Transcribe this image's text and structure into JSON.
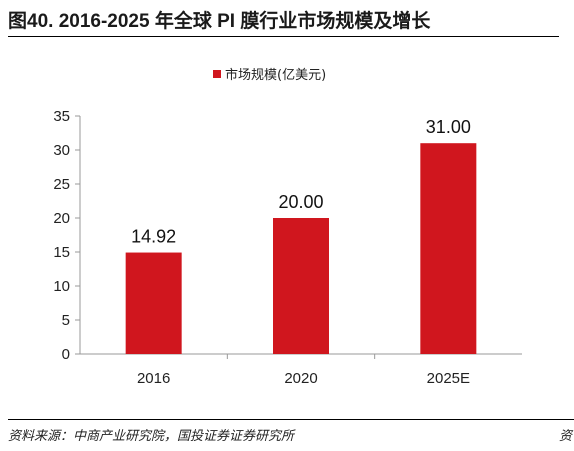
{
  "figure": {
    "title": "图40. 2016-2025 年全球 PI 膜行业市场规模及增长",
    "source": "资料来源：中商产业研究院，国投证券证券研究所",
    "source_right": "资"
  },
  "colors": {
    "bar": "#d0161e",
    "axis": "#999999"
  },
  "chart_data": {
    "type": "bar",
    "categories": [
      "2016",
      "2020",
      "2025E"
    ],
    "series": [
      {
        "name": "市场规模(亿美元)",
        "values": [
          14.92,
          20.0,
          31.0
        ]
      }
    ],
    "data_labels": [
      "14.92",
      "20.00",
      "31.00"
    ],
    "yticks": [
      "0",
      "5",
      "10",
      "15",
      "20",
      "25",
      "30",
      "35"
    ],
    "ylim": [
      0,
      35
    ],
    "legend_position": "top-center",
    "grid": false
  }
}
